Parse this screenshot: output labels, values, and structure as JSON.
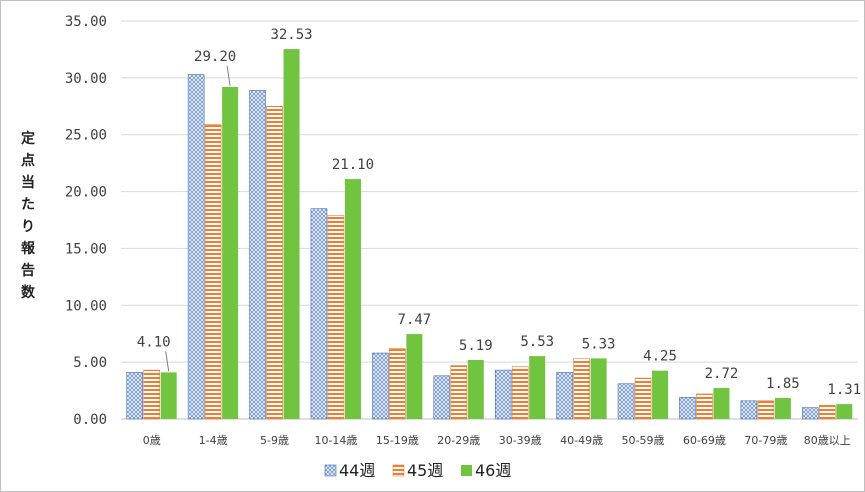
{
  "chart_data": {
    "type": "bar",
    "title": "",
    "xlabel": "",
    "ylabel": "定点当たり報告数",
    "ylim": [
      0,
      35
    ],
    "y_ticks": [
      "0.00",
      "5.00",
      "10.00",
      "15.00",
      "20.00",
      "25.00",
      "30.00",
      "35.00"
    ],
    "grid": true,
    "legend_position": "bottom",
    "categories": [
      "0歳",
      "1-4歳",
      "5-9歳",
      "10-14歳",
      "15-19歳",
      "20-29歳",
      "30-39歳",
      "40-49歳",
      "50-59歳",
      "60-69歳",
      "70-79歳",
      "80歳以上"
    ],
    "series": [
      {
        "name": "44週",
        "color": "#4472c4",
        "pattern": "dots",
        "values": [
          4.1,
          30.3,
          28.9,
          18.5,
          5.8,
          3.8,
          4.3,
          4.1,
          3.1,
          1.9,
          1.6,
          1.0
        ]
      },
      {
        "name": "45週",
        "color": "#ed7d31",
        "pattern": "hstripes",
        "values": [
          4.3,
          25.9,
          27.5,
          17.9,
          6.2,
          4.7,
          4.6,
          5.3,
          3.6,
          2.2,
          1.6,
          1.2
        ]
      },
      {
        "name": "46週",
        "color": "#70c43f",
        "pattern": "solid",
        "values": [
          4.1,
          29.2,
          32.53,
          21.1,
          7.47,
          5.19,
          5.53,
          5.33,
          4.25,
          2.72,
          1.85,
          1.31
        ]
      }
    ],
    "data_labels": {
      "series": "46週",
      "labels": [
        "4.10",
        "29.20",
        "32.53",
        "21.10",
        "7.47",
        "5.19",
        "5.53",
        "5.33",
        "4.25",
        "2.72",
        "1.85",
        "1.31"
      ]
    }
  }
}
